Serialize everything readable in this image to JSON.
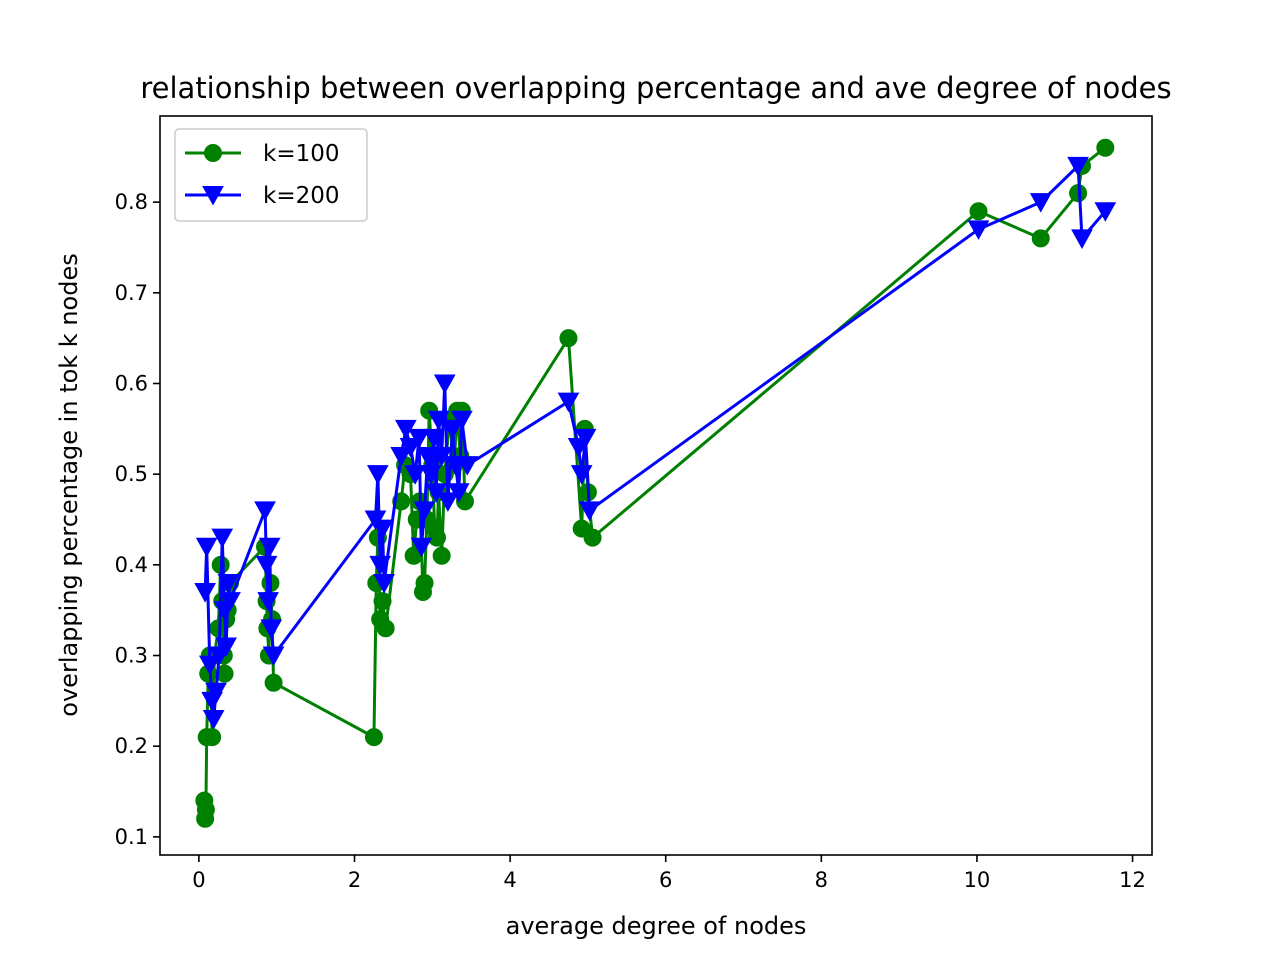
{
  "chart_data": {
    "type": "line",
    "title": "relationship between overlapping percentage and ave degree of nodes",
    "xlabel": "average degree of nodes",
    "ylabel": "overlapping percentage in tok k nodes",
    "xlim": [
      -0.5,
      12.25
    ],
    "ylim": [
      0.08,
      0.895
    ],
    "xticks": [
      0,
      2,
      4,
      6,
      8,
      10,
      12
    ],
    "xtick_labels": [
      "0",
      "2",
      "4",
      "6",
      "8",
      "10",
      "12"
    ],
    "yticks": [
      0.1,
      0.2,
      0.3,
      0.4,
      0.5,
      0.6,
      0.7,
      0.8
    ],
    "ytick_labels": [
      "0.1",
      "0.2",
      "0.3",
      "0.4",
      "0.5",
      "0.6",
      "0.7",
      "0.8"
    ],
    "grid": false,
    "legend_position": "upper-left",
    "series": [
      {
        "name": "k=100",
        "color": "#008000",
        "marker": "circle",
        "x": [
          0.07,
          0.08,
          0.09,
          0.1,
          0.12,
          0.14,
          0.17,
          0.2,
          0.25,
          0.28,
          0.3,
          0.32,
          0.33,
          0.35,
          0.37,
          0.4,
          0.85,
          0.87,
          0.88,
          0.9,
          0.92,
          0.94,
          0.96,
          2.25,
          2.28,
          2.3,
          2.33,
          2.36,
          2.4,
          2.6,
          2.65,
          2.72,
          2.76,
          2.8,
          2.84,
          2.88,
          2.9,
          2.93,
          2.96,
          3.0,
          3.03,
          3.06,
          3.08,
          3.12,
          3.16,
          3.22,
          3.28,
          3.32,
          3.36,
          3.38,
          3.42,
          4.75,
          4.92,
          4.96,
          5.0,
          5.06,
          10.02,
          10.82,
          11.3,
          11.35,
          11.65
        ],
        "y": [
          0.14,
          0.12,
          0.13,
          0.21,
          0.28,
          0.3,
          0.21,
          0.3,
          0.33,
          0.4,
          0.36,
          0.3,
          0.28,
          0.34,
          0.35,
          0.38,
          0.42,
          0.36,
          0.33,
          0.3,
          0.38,
          0.34,
          0.27,
          0.21,
          0.38,
          0.43,
          0.34,
          0.36,
          0.33,
          0.47,
          0.51,
          0.5,
          0.41,
          0.45,
          0.47,
          0.37,
          0.38,
          0.45,
          0.57,
          0.51,
          0.44,
          0.43,
          0.48,
          0.41,
          0.5,
          0.56,
          0.51,
          0.57,
          0.52,
          0.57,
          0.47,
          0.65,
          0.44,
          0.55,
          0.48,
          0.43,
          0.79,
          0.76,
          0.81,
          0.84,
          0.86
        ]
      },
      {
        "name": "k=200",
        "color": "#0000ff",
        "marker": "triangle-down",
        "x": [
          0.08,
          0.1,
          0.14,
          0.17,
          0.19,
          0.22,
          0.26,
          0.3,
          0.33,
          0.35,
          0.38,
          0.4,
          0.85,
          0.87,
          0.89,
          0.91,
          0.93,
          0.96,
          2.27,
          2.3,
          2.33,
          2.36,
          2.38,
          2.6,
          2.66,
          2.72,
          2.78,
          2.83,
          2.86,
          2.9,
          2.94,
          2.98,
          3.02,
          3.05,
          3.08,
          3.12,
          3.16,
          3.2,
          3.26,
          3.3,
          3.34,
          3.38,
          3.45,
          4.75,
          4.88,
          4.92,
          4.97,
          5.02,
          10.02,
          10.82,
          11.3,
          11.35,
          11.65
        ],
        "y": [
          0.37,
          0.42,
          0.29,
          0.25,
          0.23,
          0.26,
          0.3,
          0.43,
          0.35,
          0.31,
          0.38,
          0.36,
          0.46,
          0.4,
          0.36,
          0.42,
          0.33,
          0.3,
          0.45,
          0.5,
          0.4,
          0.44,
          0.38,
          0.52,
          0.55,
          0.53,
          0.5,
          0.54,
          0.42,
          0.46,
          0.52,
          0.5,
          0.54,
          0.48,
          0.56,
          0.52,
          0.6,
          0.47,
          0.55,
          0.51,
          0.48,
          0.56,
          0.51,
          0.58,
          0.53,
          0.5,
          0.54,
          0.46,
          0.77,
          0.8,
          0.84,
          0.76,
          0.79
        ]
      }
    ]
  }
}
